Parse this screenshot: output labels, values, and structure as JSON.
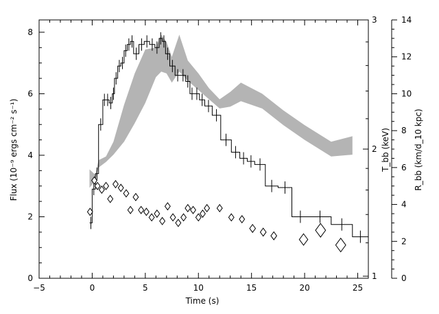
{
  "chart_data": {
    "type": "line",
    "xlabel": "Time (s)",
    "ylabel": "Flux (10⁻⁹ ergs cm⁻² s⁻¹)",
    "y2label": "T_bb (keV)",
    "y3label": "R_bb (km/d_10 kpc)",
    "xlim": [
      -5,
      26
    ],
    "ylim": [
      0,
      8.4
    ],
    "x_ticks": [
      -5,
      0,
      5,
      10,
      15,
      20,
      25
    ],
    "y_ticks": [
      0,
      2,
      4,
      6,
      8
    ],
    "y2_ticks": [
      1,
      2,
      3
    ],
    "y3_ticks": [
      0,
      2,
      4,
      6,
      8,
      10,
      12,
      14
    ],
    "grid": false,
    "series": [
      {
        "style": "step",
        "edges": [
          -0.25,
          0.0,
          0.3,
          0.6,
          1.0,
          1.3,
          1.6,
          1.9,
          2.1,
          2.4,
          2.7,
          3.0,
          3.3,
          3.6,
          3.9,
          4.4,
          4.9,
          5.4,
          5.9,
          6.3,
          6.6,
          6.9,
          7.3,
          7.8,
          8.3,
          8.8,
          9.2,
          9.6,
          10.1,
          10.6,
          11.3,
          12.1,
          13.1,
          13.9,
          14.6,
          15.3,
          16.3,
          17.5,
          18.8,
          20.4,
          22.5,
          24.5,
          26.0
        ],
        "values": [
          1.8,
          2.9,
          3.4,
          5.0,
          5.8,
          5.8,
          5.7,
          6.0,
          6.5,
          6.9,
          7.0,
          7.4,
          7.6,
          7.7,
          7.3,
          7.6,
          7.7,
          7.6,
          7.5,
          7.8,
          7.7,
          7.3,
          6.9,
          6.6,
          6.6,
          6.4,
          6.0,
          6.0,
          5.8,
          5.6,
          5.3,
          4.5,
          4.1,
          3.9,
          3.8,
          3.7,
          3.0,
          2.95,
          2.0,
          2.0,
          1.75,
          1.35
        ]
      },
      {
        "style": "band",
        "x": [
          -0.25,
          0.3,
          0.6,
          1.3,
          2.0,
          3.0,
          4.0,
          5.0,
          6.0,
          6.5,
          7.0,
          7.5,
          8.2,
          9.0,
          10.0,
          11.0,
          12.0,
          13.0,
          14.0,
          16.0,
          18.0,
          20.0,
          22.5,
          24.5
        ],
        "lower": [
          4.9,
          5.3,
          6.0,
          6.3,
          6.7,
          7.4,
          8.4,
          9.5,
          10.9,
          11.2,
          11.1,
          10.6,
          11.2,
          10.7,
          10.2,
          9.7,
          9.2,
          9.3,
          9.6,
          9.2,
          8.3,
          7.5,
          6.6,
          6.7
        ],
        "upper": [
          5.9,
          5.6,
          6.4,
          6.6,
          7.4,
          9.4,
          11.1,
          12.4,
          12.5,
          13.2,
          12.8,
          12.0,
          13.2,
          11.8,
          11.1,
          10.3,
          9.7,
          10.1,
          10.6,
          10.0,
          9.1,
          8.3,
          7.4,
          7.7
        ]
      },
      {
        "style": "markers",
        "marker": "diamond",
        "x": [
          -0.2,
          0.2,
          0.5,
          0.9,
          1.3,
          1.7,
          2.2,
          2.7,
          3.2,
          3.6,
          4.1,
          4.6,
          5.1,
          5.6,
          6.1,
          6.6,
          7.1,
          7.6,
          8.1,
          8.6,
          9.0,
          9.5,
          10.0,
          10.4,
          10.8,
          12.0,
          13.1,
          14.1,
          15.1,
          16.1,
          17.1,
          19.9,
          21.5,
          23.4
        ],
        "y": [
          3.6,
          5.3,
          5.0,
          4.8,
          5.0,
          4.3,
          5.1,
          4.9,
          4.6,
          3.7,
          4.4,
          3.7,
          3.6,
          3.3,
          3.5,
          3.1,
          3.9,
          3.3,
          3.0,
          3.3,
          3.8,
          3.7,
          3.3,
          3.5,
          3.8,
          3.8,
          3.3,
          3.2,
          2.7,
          2.5,
          2.3,
          2.1,
          2.6,
          1.8
        ],
        "sizes": [
          0.5,
          0.5,
          0.5,
          0.5,
          0.5,
          0.5,
          0.5,
          0.5,
          0.5,
          0.5,
          0.5,
          0.5,
          0.5,
          0.5,
          0.5,
          0.5,
          0.5,
          0.5,
          0.5,
          0.5,
          0.5,
          0.5,
          0.5,
          0.5,
          0.5,
          0.5,
          0.5,
          0.5,
          0.55,
          0.55,
          0.55,
          0.8,
          0.95,
          0.95
        ]
      }
    ]
  }
}
